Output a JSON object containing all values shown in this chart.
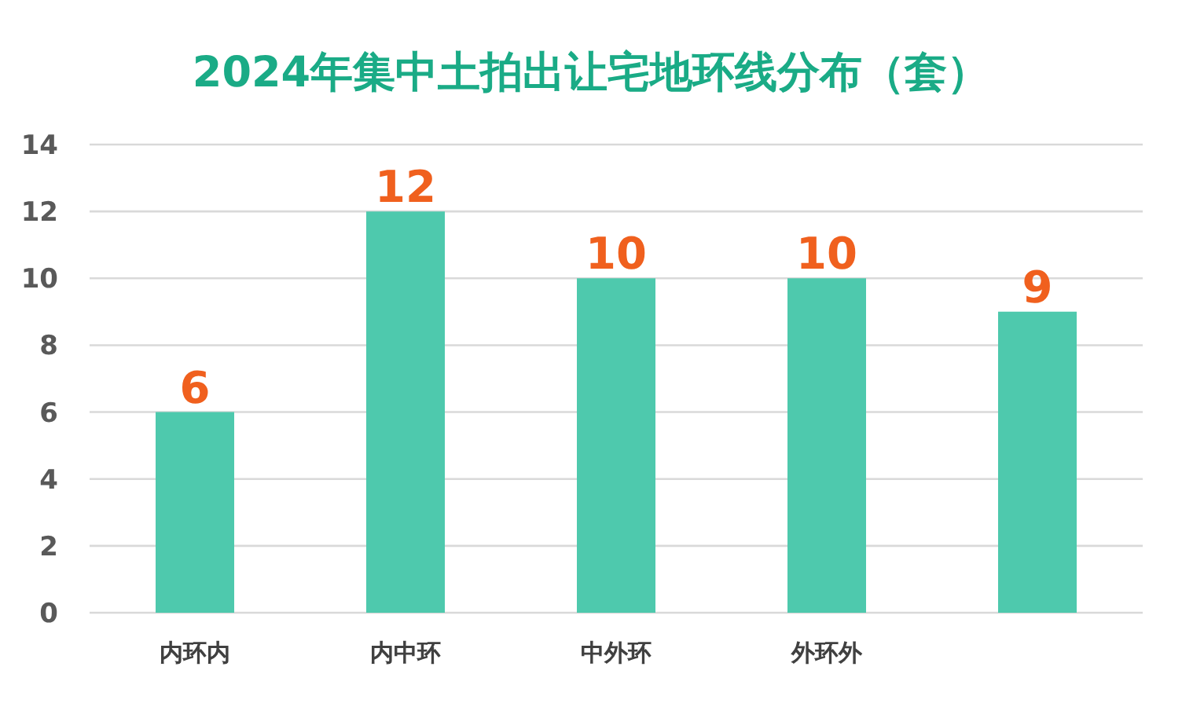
{
  "chart_data": {
    "type": "bar",
    "title": "2024年集中土拍出让宅地环线分布（套）",
    "categories": [
      "内环内",
      "内中环",
      "中外环",
      "外环外",
      null
    ],
    "values": [
      6,
      12,
      10,
      10,
      9
    ],
    "color": "#4ec9ad",
    "ylim": [
      0,
      14
    ],
    "yticks": [
      0,
      2,
      4,
      6,
      8,
      10,
      12,
      14
    ],
    "grid": "y",
    "data_labels": true
  }
}
